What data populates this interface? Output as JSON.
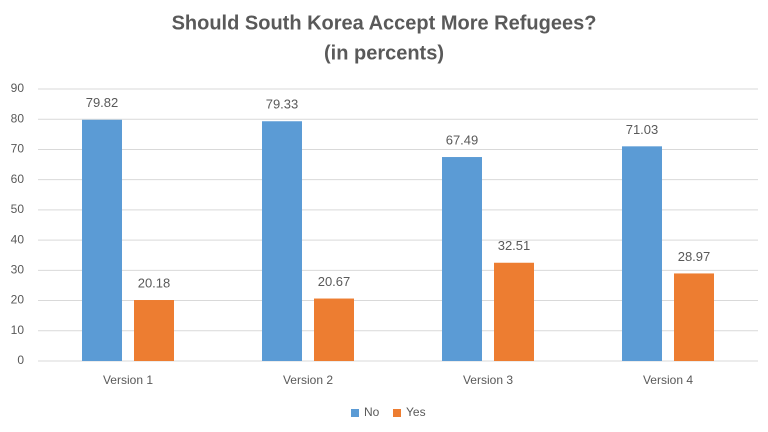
{
  "chart_data": {
    "type": "bar",
    "title": "Should South Korea Accept More Refugees?",
    "subtitle": "(in percents)",
    "categories": [
      "Version 1",
      "Version 2",
      "Version 3",
      "Version 4"
    ],
    "series": [
      {
        "name": "No",
        "color": "#5b9bd5",
        "values": [
          79.82,
          79.33,
          67.49,
          71.03
        ]
      },
      {
        "name": "Yes",
        "color": "#ed7d31",
        "values": [
          20.18,
          20.67,
          32.51,
          28.97
        ]
      }
    ],
    "ylim": [
      0,
      90
    ],
    "yticks": [
      0,
      10,
      20,
      30,
      40,
      50,
      60,
      70,
      80,
      90
    ],
    "grid": true,
    "legend": "bottom"
  }
}
